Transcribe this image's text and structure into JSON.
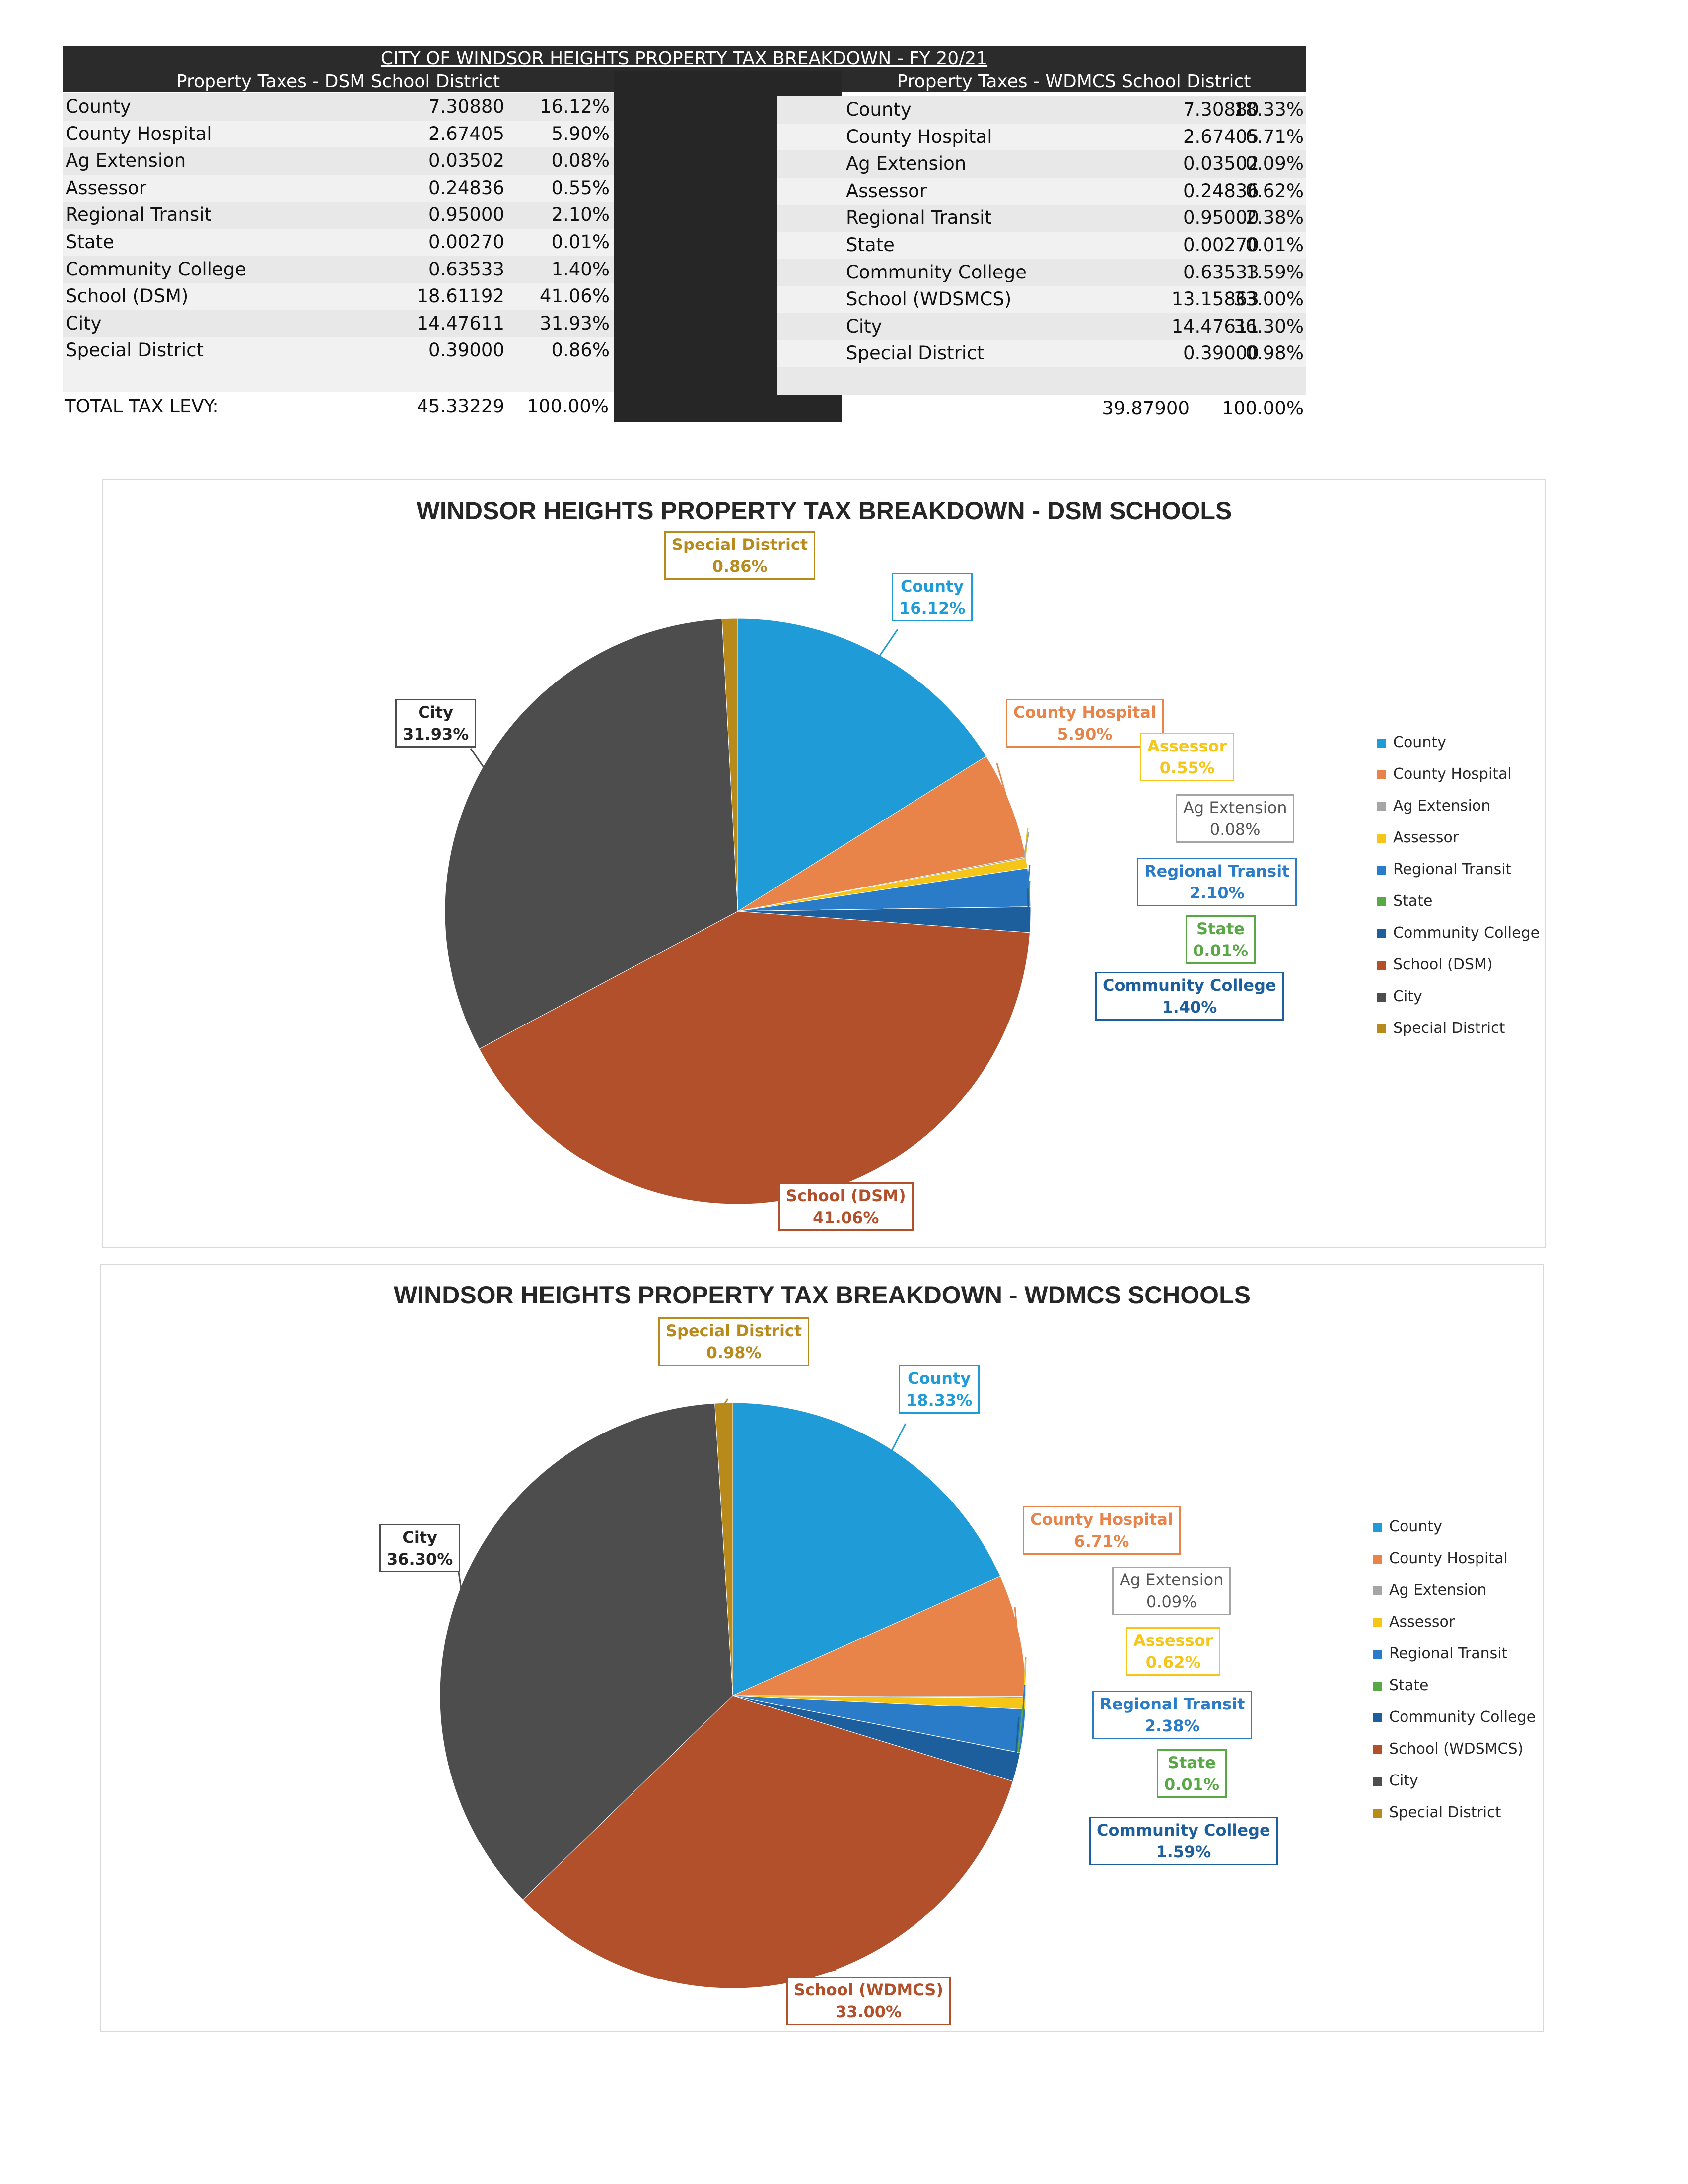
{
  "table": {
    "title": "CITY OF WINDSOR HEIGHTS PROPERTY TAX BREAKDOWN - FY 20/21",
    "left_header": "Property Taxes - DSM School District",
    "right_header": "Property Taxes - WDMCS School District",
    "left_rows": [
      {
        "name": "County",
        "rate": "7.30880",
        "pct": "16.12%"
      },
      {
        "name": "County Hospital",
        "rate": "2.67405",
        "pct": "5.90%"
      },
      {
        "name": "Ag Extension",
        "rate": "0.03502",
        "pct": "0.08%"
      },
      {
        "name": "Assessor",
        "rate": "0.24836",
        "pct": "0.55%"
      },
      {
        "name": "Regional Transit",
        "rate": "0.95000",
        "pct": "2.10%"
      },
      {
        "name": "State",
        "rate": "0.00270",
        "pct": "0.01%"
      },
      {
        "name": "Community College",
        "rate": "0.63533",
        "pct": "1.40%"
      },
      {
        "name": "School (DSM)",
        "rate": "18.61192",
        "pct": "41.06%"
      },
      {
        "name": "City",
        "rate": "14.47611",
        "pct": "31.93%"
      },
      {
        "name": "Special District",
        "rate": "0.39000",
        "pct": "0.86%"
      }
    ],
    "right_rows": [
      {
        "name": "County",
        "rate": "7.30880",
        "pct": "18.33%"
      },
      {
        "name": "County Hospital",
        "rate": "2.67405",
        "pct": "6.71%"
      },
      {
        "name": "Ag Extension",
        "rate": "0.03502",
        "pct": "0.09%"
      },
      {
        "name": "Assessor",
        "rate": "0.24836",
        "pct": "0.62%"
      },
      {
        "name": "Regional Transit",
        "rate": "0.95000",
        "pct": "2.38%"
      },
      {
        "name": "State",
        "rate": "0.00270",
        "pct": "0.01%"
      },
      {
        "name": "Community College",
        "rate": "0.63533",
        "pct": "1.59%"
      },
      {
        "name": "School (WDSMCS)",
        "rate": "13.15863",
        "pct": "33.00%"
      },
      {
        "name": "City",
        "rate": "14.47611",
        "pct": "36.30%"
      },
      {
        "name": "Special District",
        "rate": "0.39000",
        "pct": "0.98%"
      }
    ],
    "total_label": "TOTAL TAX LEVY:",
    "left_total": "45.33229",
    "left_total_pct": "100.00%",
    "right_total": "39.87900",
    "right_total_pct": "100.00%"
  },
  "colors": {
    "County": "#1f9bd7",
    "County Hospital": "#e8834a",
    "Ag Extension": "#a5a5a5",
    "Assessor": "#f5c518",
    "Regional Transit": "#2a7cc8",
    "State": "#5aa845",
    "Community College": "#1d5e9c",
    "School": "#b1502a",
    "City": "#4d4d4d",
    "Special District": "#b88a1c"
  },
  "chart_data": [
    {
      "type": "pie",
      "title": "WINDSOR HEIGHTS PROPERTY TAX BREAKDOWN - DSM SCHOOLS",
      "legend_position": "right",
      "categories": [
        "County",
        "County Hospital",
        "Ag Extension",
        "Assessor",
        "Regional Transit",
        "State",
        "Community College",
        "School (DSM)",
        "City",
        "Special District"
      ],
      "values": [
        16.12,
        5.9,
        0.08,
        0.55,
        2.1,
        0.01,
        1.4,
        41.06,
        31.93,
        0.86
      ],
      "labels": [
        {
          "name": "County",
          "pct": "16.12%"
        },
        {
          "name": "County Hospital",
          "pct": "5.90%"
        },
        {
          "name": "Ag Extension",
          "pct": "0.08%"
        },
        {
          "name": "Assessor",
          "pct": "0.55%"
        },
        {
          "name": "Regional Transit",
          "pct": "2.10%"
        },
        {
          "name": "State",
          "pct": "0.01%"
        },
        {
          "name": "Community College",
          "pct": "1.40%"
        },
        {
          "name": "School (DSM)",
          "pct": "41.06%"
        },
        {
          "name": "City",
          "pct": "31.93%"
        },
        {
          "name": "Special District",
          "pct": "0.86%"
        }
      ]
    },
    {
      "type": "pie",
      "title": "WINDSOR HEIGHTS PROPERTY TAX BREAKDOWN - WDMCS SCHOOLS",
      "legend_position": "right",
      "categories": [
        "County",
        "County Hospital",
        "Ag Extension",
        "Assessor",
        "Regional Transit",
        "State",
        "Community College",
        "School (WDSMCS)",
        "City",
        "Special District"
      ],
      "values": [
        18.33,
        6.71,
        0.09,
        0.62,
        2.38,
        0.01,
        1.59,
        33.0,
        36.3,
        0.98
      ],
      "labels": [
        {
          "name": "County",
          "pct": "18.33%"
        },
        {
          "name": "County Hospital",
          "pct": "6.71%"
        },
        {
          "name": "Ag Extension",
          "pct": "0.09%"
        },
        {
          "name": "Assessor",
          "pct": "0.62%"
        },
        {
          "name": "Regional Transit",
          "pct": "2.38%"
        },
        {
          "name": "State",
          "pct": "0.01%"
        },
        {
          "name": "Community College",
          "pct": "1.59%"
        },
        {
          "name": "School (WDMCS)",
          "pct": "33.00%"
        },
        {
          "name": "City",
          "pct": "36.30%"
        },
        {
          "name": "Special District",
          "pct": "0.98%"
        }
      ]
    }
  ]
}
